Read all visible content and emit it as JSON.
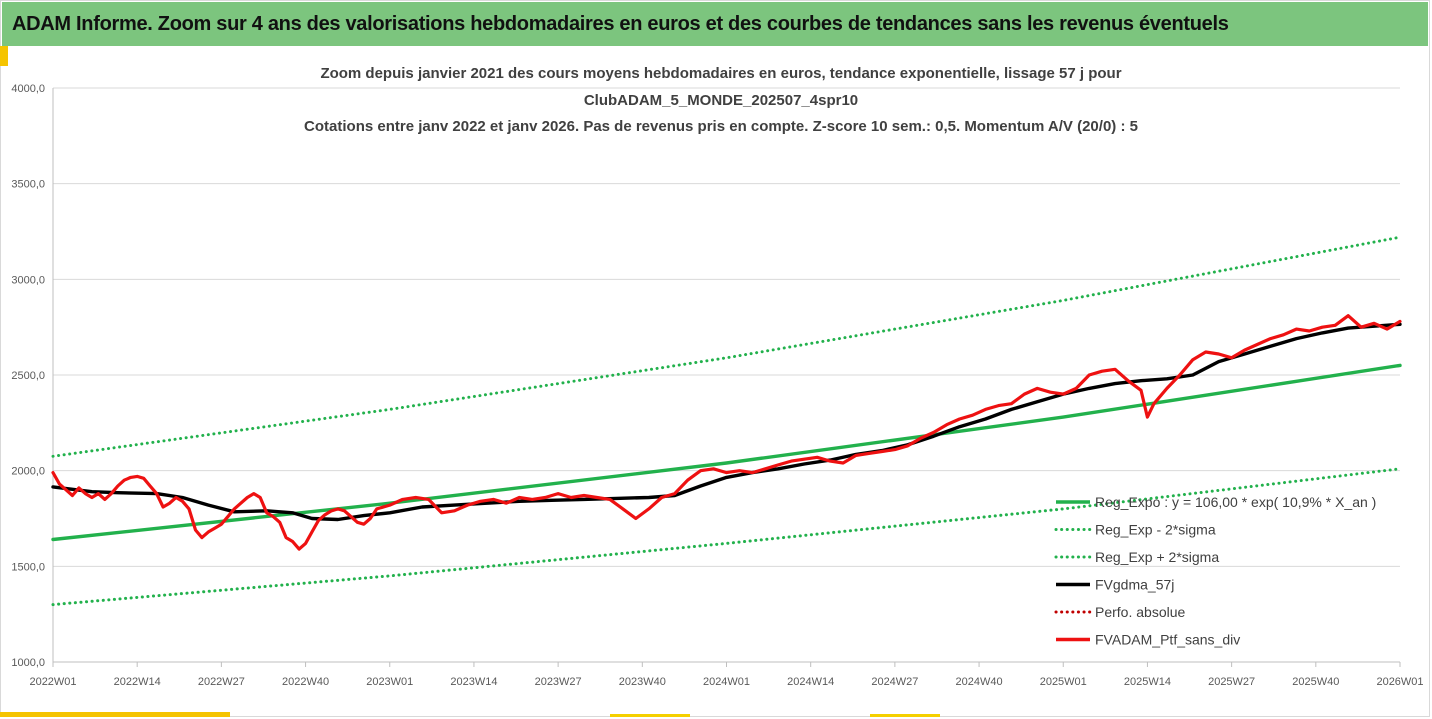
{
  "banner": {
    "title": "ADAM Informe. Zoom sur 4 ans des valorisations hebdomadaires en euros et des courbes de tendances sans les revenus éventuels"
  },
  "chart_data": {
    "type": "line",
    "title_lines": [
      "Zoom depuis janvier 2021 des cours moyens hebdomadaires  en euros, tendance exponentielle, lissage 57 j pour",
      "ClubADAM_5_MONDE_202507_4spr10",
      "Cotations entre janv 2022 et janv 2026. Pas de revenus pris en compte. Z-score 10 sem.: 0,5. Momentum A/V (20/0) : 5"
    ],
    "xlabel": "",
    "ylabel": "",
    "ylim": [
      1000,
      4000
    ],
    "xlim": [
      0,
      208
    ],
    "y_ticks": [
      {
        "value": 1000,
        "label": "1000,0"
      },
      {
        "value": 1500,
        "label": "1500,0"
      },
      {
        "value": 2000,
        "label": "2000,0"
      },
      {
        "value": 2500,
        "label": "2500,0"
      },
      {
        "value": 3000,
        "label": "3000,0"
      },
      {
        "value": 3500,
        "label": "3500,0"
      },
      {
        "value": 4000,
        "label": "4000,0"
      }
    ],
    "x_ticks": [
      {
        "week": 0,
        "label": "2022W01"
      },
      {
        "week": 13,
        "label": "2022W14"
      },
      {
        "week": 26,
        "label": "2022W27"
      },
      {
        "week": 39,
        "label": "2022W40"
      },
      {
        "week": 52,
        "label": "2023W01"
      },
      {
        "week": 65,
        "label": "2023W14"
      },
      {
        "week": 78,
        "label": "2023W27"
      },
      {
        "week": 91,
        "label": "2023W40"
      },
      {
        "week": 104,
        "label": "2024W01"
      },
      {
        "week": 117,
        "label": "2024W14"
      },
      {
        "week": 130,
        "label": "2024W27"
      },
      {
        "week": 143,
        "label": "2024W40"
      },
      {
        "week": 156,
        "label": "2025W01"
      },
      {
        "week": 169,
        "label": "2025W14"
      },
      {
        "week": 182,
        "label": "2025W27"
      },
      {
        "week": 195,
        "label": "2025W40"
      },
      {
        "week": 208,
        "label": "2026W01"
      }
    ],
    "series": [
      {
        "name": "Reg_Expo : y = 106,00 * exp( 10,9% *  X_an )",
        "style": "solid-thick",
        "color": "#22b14c",
        "x": [
          0,
          52,
          104,
          156,
          208
        ],
        "values": [
          1640,
          1830,
          2040,
          2280,
          2550
        ]
      },
      {
        "name": "Reg_Exp - 2*sigma",
        "style": "dotted",
        "color": "#22b14c",
        "x": [
          0,
          52,
          104,
          156,
          208
        ],
        "values": [
          1300,
          1450,
          1620,
          1800,
          2010
        ]
      },
      {
        "name": "Reg_Exp + 2*sigma",
        "style": "dotted",
        "color": "#22b14c",
        "x": [
          0,
          52,
          104,
          156,
          208
        ],
        "values": [
          2075,
          2320,
          2590,
          2890,
          3220
        ]
      },
      {
        "name": "FVgdma_57j",
        "style": "solid-thick",
        "color": "#000000",
        "x": [
          0,
          6,
          10,
          16,
          20,
          24,
          28,
          33,
          37,
          40,
          44,
          48,
          52,
          57,
          62,
          67,
          72,
          77,
          82,
          87,
          92,
          96,
          100,
          104,
          108,
          112,
          116,
          120,
          124,
          128,
          132,
          136,
          140,
          144,
          148,
          152,
          156,
          160,
          164,
          168,
          172,
          176,
          180,
          184,
          188,
          192,
          196,
          200,
          204,
          208
        ],
        "values": [
          1915,
          1890,
          1885,
          1880,
          1860,
          1820,
          1785,
          1790,
          1780,
          1750,
          1745,
          1765,
          1780,
          1810,
          1820,
          1830,
          1840,
          1845,
          1850,
          1855,
          1860,
          1870,
          1920,
          1965,
          1990,
          2010,
          2035,
          2055,
          2085,
          2105,
          2135,
          2180,
          2230,
          2270,
          2320,
          2360,
          2400,
          2430,
          2455,
          2470,
          2480,
          2500,
          2570,
          2610,
          2650,
          2690,
          2720,
          2745,
          2755,
          2765
        ]
      },
      {
        "name": "Perfo. absolue",
        "style": "dotted",
        "color": "#c00000",
        "x": [],
        "values": []
      },
      {
        "name": "FVADAM_Ptf_sans_div",
        "style": "solid-thick",
        "color": "#ee1111",
        "x": [
          0,
          1,
          2,
          3,
          4,
          5,
          6,
          7,
          8,
          9,
          10,
          11,
          12,
          13,
          14,
          15,
          16,
          17,
          18,
          19,
          20,
          21,
          22,
          23,
          24,
          25,
          26,
          27,
          28,
          29,
          30,
          31,
          32,
          33,
          34,
          35,
          36,
          37,
          38,
          39,
          40,
          41,
          42,
          43,
          44,
          45,
          46,
          47,
          48,
          49,
          50,
          52,
          54,
          56,
          58,
          60,
          62,
          64,
          66,
          68,
          70,
          72,
          74,
          76,
          78,
          80,
          82,
          84,
          86,
          88,
          90,
          92,
          94,
          96,
          98,
          100,
          102,
          104,
          106,
          108,
          110,
          112,
          114,
          116,
          118,
          120,
          122,
          124,
          126,
          128,
          130,
          132,
          134,
          136,
          138,
          140,
          142,
          144,
          146,
          148,
          150,
          152,
          154,
          156,
          158,
          160,
          162,
          164,
          166,
          168,
          169,
          170,
          172,
          174,
          176,
          178,
          180,
          182,
          184,
          186,
          188,
          190,
          192,
          194,
          196,
          198,
          200,
          202,
          204,
          206,
          208
        ],
        "values": [
          1990,
          1930,
          1900,
          1870,
          1910,
          1880,
          1860,
          1880,
          1850,
          1880,
          1920,
          1950,
          1965,
          1970,
          1960,
          1920,
          1880,
          1810,
          1830,
          1860,
          1840,
          1800,
          1690,
          1650,
          1680,
          1700,
          1720,
          1760,
          1800,
          1830,
          1860,
          1880,
          1860,
          1780,
          1760,
          1730,
          1650,
          1630,
          1590,
          1620,
          1680,
          1740,
          1770,
          1790,
          1800,
          1790,
          1760,
          1730,
          1720,
          1750,
          1800,
          1820,
          1850,
          1860,
          1850,
          1780,
          1790,
          1820,
          1840,
          1850,
          1830,
          1860,
          1850,
          1860,
          1880,
          1860,
          1870,
          1860,
          1850,
          1800,
          1750,
          1800,
          1860,
          1880,
          1950,
          2000,
          2010,
          1990,
          2000,
          1990,
          2010,
          2030,
          2050,
          2060,
          2070,
          2050,
          2040,
          2080,
          2090,
          2100,
          2110,
          2130,
          2170,
          2200,
          2240,
          2270,
          2290,
          2320,
          2340,
          2350,
          2400,
          2430,
          2410,
          2400,
          2430,
          2500,
          2520,
          2530,
          2470,
          2420,
          2280,
          2350,
          2430,
          2500,
          2580,
          2620,
          2610,
          2590,
          2630,
          2660,
          2690,
          2710,
          2740,
          2730,
          2750,
          2760,
          2810,
          2750,
          2770,
          2740,
          2780
        ]
      }
    ]
  }
}
